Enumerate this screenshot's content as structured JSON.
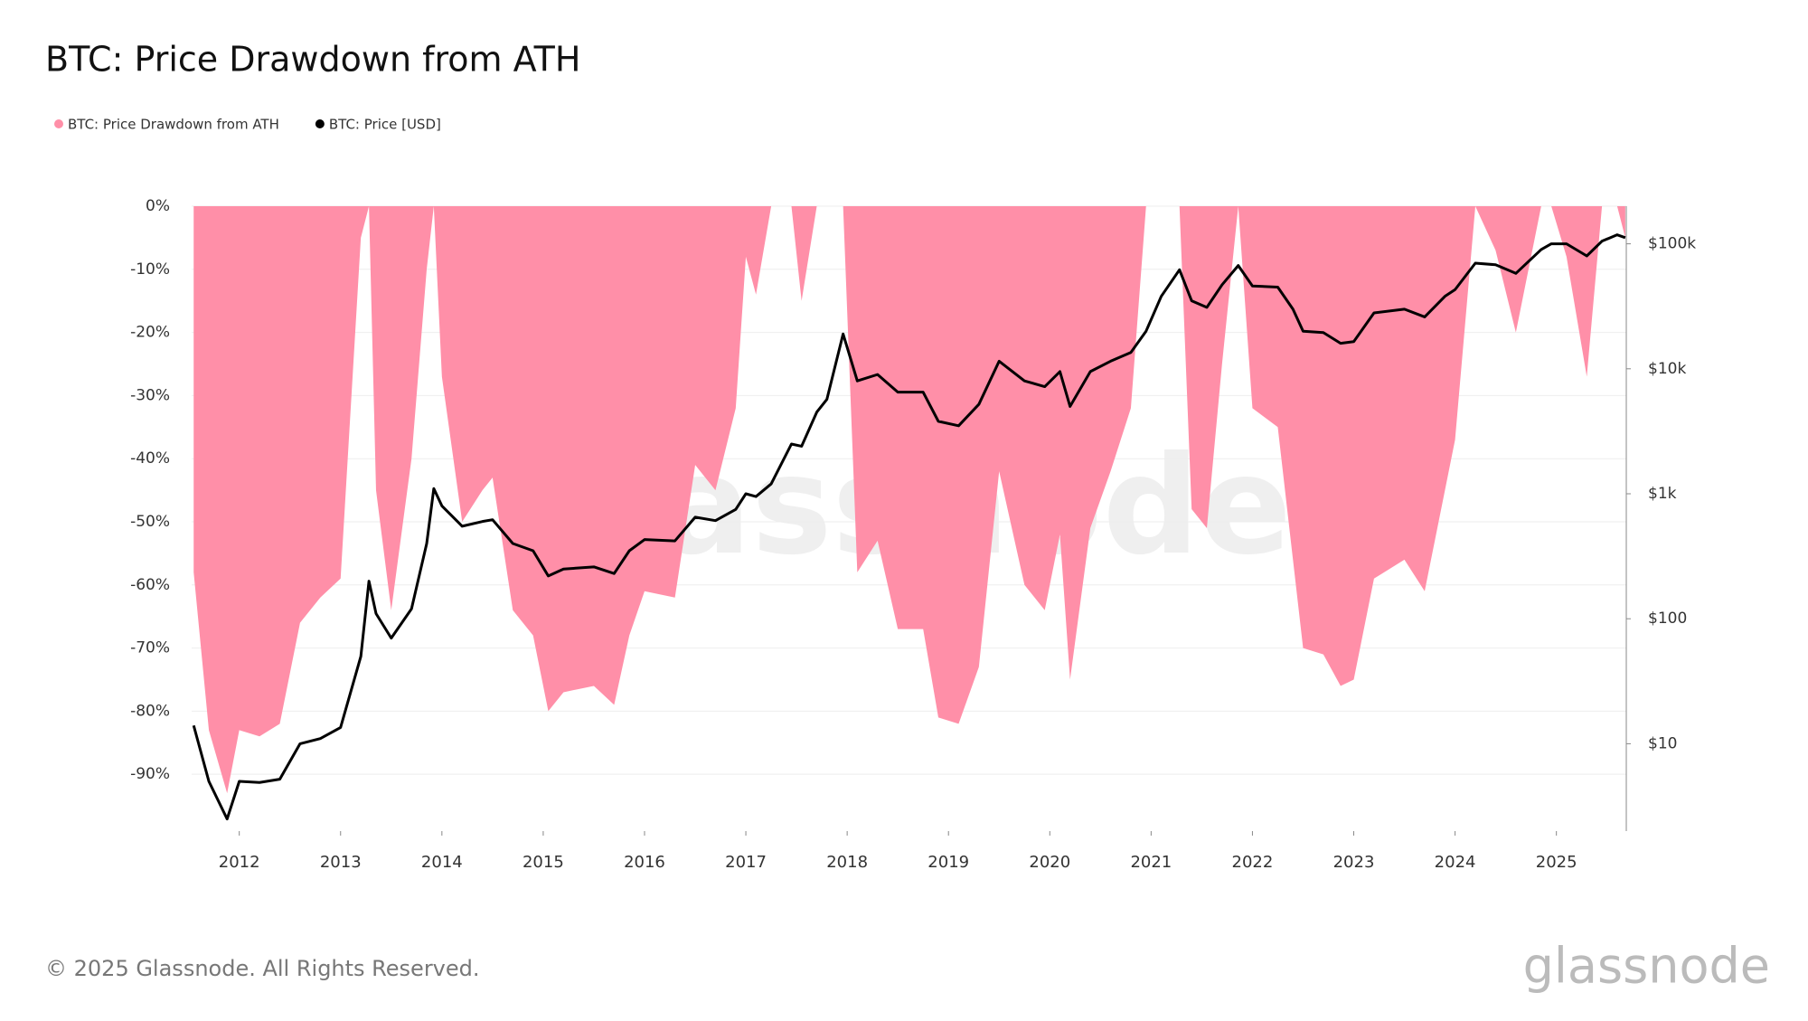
{
  "chart_data": {
    "type": "area",
    "title": "BTC: Price Drawdown from ATH",
    "watermark": "glassnode",
    "footer": "© 2025 Glassnode. All Rights Reserved.",
    "logo": "glassnode",
    "x": [
      2011.55,
      2011.7,
      2011.88,
      2012.0,
      2012.2,
      2012.4,
      2012.6,
      2012.8,
      2013.0,
      2013.2,
      2013.28,
      2013.35,
      2013.5,
      2013.7,
      2013.85,
      2013.92,
      2014.0,
      2014.2,
      2014.4,
      2014.5,
      2014.7,
      2014.9,
      2015.05,
      2015.2,
      2015.5,
      2015.7,
      2015.85,
      2016.0,
      2016.3,
      2016.5,
      2016.7,
      2016.9,
      2017.0,
      2017.1,
      2017.25,
      2017.45,
      2017.55,
      2017.7,
      2017.8,
      2017.96,
      2018.1,
      2018.3,
      2018.5,
      2018.75,
      2018.9,
      2019.1,
      2019.3,
      2019.5,
      2019.75,
      2019.95,
      2020.1,
      2020.2,
      2020.4,
      2020.6,
      2020.8,
      2020.95,
      2021.1,
      2021.28,
      2021.4,
      2021.55,
      2021.7,
      2021.86,
      2022.0,
      2022.25,
      2022.4,
      2022.5,
      2022.7,
      2022.87,
      2023.0,
      2023.2,
      2023.5,
      2023.7,
      2023.9,
      2024.0,
      2024.2,
      2024.4,
      2024.6,
      2024.85,
      2024.95,
      2025.1,
      2025.3,
      2025.45,
      2025.6,
      2025.68
    ],
    "series": [
      {
        "name": "BTC: Price Drawdown from ATH",
        "type": "area",
        "color": "#ff8fa8",
        "values": [
          -58,
          -83,
          -93,
          -83,
          -84,
          -82,
          -66,
          -62,
          -59,
          -5,
          0,
          -45,
          -64,
          -40,
          -10,
          0,
          -27,
          -50,
          -45,
          -43,
          -64,
          -68,
          -80,
          -77,
          -76,
          -79,
          -68,
          -61,
          -62,
          -41,
          -45,
          -32,
          -8,
          -14,
          0,
          0,
          -15,
          0,
          0,
          0,
          -58,
          -53,
          -67,
          -67,
          -81,
          -82,
          -73,
          -42,
          -60,
          -64,
          -52,
          -75,
          -51,
          -42,
          -32,
          0,
          0,
          0,
          -48,
          -51,
          -25,
          0,
          -32,
          -35,
          -56,
          -70,
          -71,
          -76,
          -75,
          -59,
          -56,
          -61,
          -45,
          -37,
          0,
          -7,
          -20,
          0,
          0,
          -8,
          -27,
          0,
          0,
          -5
        ]
      },
      {
        "name": "BTC: Price [USD]",
        "type": "line",
        "axis": "y2",
        "color": "#000000",
        "values": [
          14,
          5,
          2.5,
          5,
          4.9,
          5.2,
          10,
          11,
          13.5,
          50,
          200,
          110,
          70,
          120,
          400,
          1100,
          800,
          550,
          600,
          620,
          400,
          350,
          220,
          250,
          260,
          230,
          350,
          430,
          420,
          650,
          610,
          750,
          1000,
          950,
          1200,
          2500,
          2400,
          4500,
          5700,
          19000,
          8000,
          9000,
          6500,
          6500,
          3800,
          3500,
          5200,
          11500,
          8000,
          7200,
          9500,
          5000,
          9500,
          11500,
          13500,
          20000,
          38000,
          62000,
          35000,
          31000,
          47000,
          67000,
          46000,
          45000,
          30000,
          20000,
          19500,
          16000,
          16500,
          28000,
          30000,
          26000,
          38000,
          43000,
          70000,
          68000,
          58000,
          90000,
          100000,
          100000,
          80000,
          105000,
          118000,
          112000
        ]
      }
    ],
    "xlim": [
      2011.53,
      2025.69
    ],
    "xticks": [
      2012,
      2013,
      2014,
      2015,
      2016,
      2017,
      2018,
      2019,
      2020,
      2021,
      2022,
      2023,
      2024,
      2025
    ],
    "ylim": [
      -99,
      0
    ],
    "yticks": [
      {
        "value": 0,
        "label": "0%"
      },
      {
        "value": -10,
        "label": "-10%"
      },
      {
        "value": -20,
        "label": "-20%"
      },
      {
        "value": -30,
        "label": "-30%"
      },
      {
        "value": -40,
        "label": "-40%"
      },
      {
        "value": -50,
        "label": "-50%"
      },
      {
        "value": -60,
        "label": "-60%"
      },
      {
        "value": -70,
        "label": "-70%"
      },
      {
        "value": -80,
        "label": "-80%"
      },
      {
        "value": -90,
        "label": "-90%"
      }
    ],
    "y2lim": [
      2,
      200000
    ],
    "y2scale": "log",
    "y2ticks": [
      {
        "value": 10,
        "label": "$10"
      },
      {
        "value": 100,
        "label": "$100"
      },
      {
        "value": 1000,
        "label": "$1k"
      },
      {
        "value": 10000,
        "label": "$10k"
      },
      {
        "value": 100000,
        "label": "$100k"
      }
    ],
    "grid": true
  }
}
